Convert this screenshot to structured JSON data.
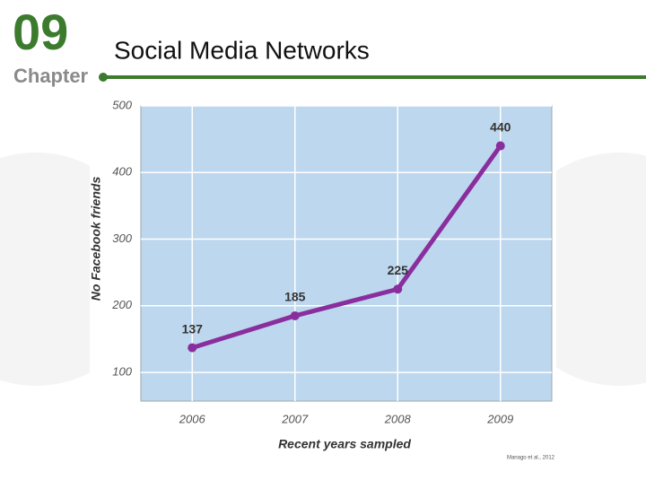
{
  "chapter_number": "09",
  "chapter_label": "Chapter",
  "slide_title": "Social Media Networks",
  "chart_data": {
    "type": "line",
    "categories": [
      "2006",
      "2007",
      "2008",
      "2009"
    ],
    "values": [
      137,
      185,
      225,
      440
    ],
    "color": "#8a2e9e",
    "ylim": [
      57,
      500
    ],
    "yticks": [
      100,
      200,
      300,
      400,
      500
    ],
    "grid": true,
    "x_label": "Recent years sampled",
    "y_label": "No Facebook friends",
    "source": "Manago et al., 2012"
  }
}
